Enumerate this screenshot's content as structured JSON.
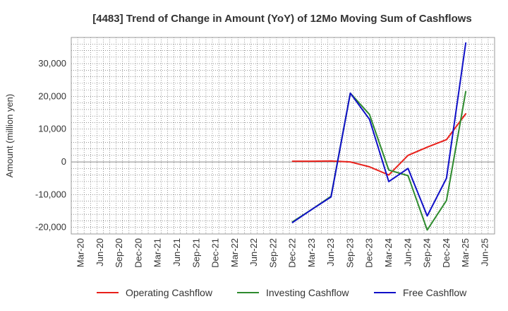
{
  "chart_data": {
    "type": "line",
    "title": "[4483]  Trend of Change in Amount (YoY) of 12Mo Moving Sum of Cashflows",
    "xlabel": "",
    "ylabel": "Amount (million yen)",
    "ylim": [
      -22000,
      38000
    ],
    "y_ticks": [
      -20000,
      -10000,
      0,
      10000,
      20000,
      30000
    ],
    "y_tick_labels": [
      "-20,000",
      "-10,000",
      "0",
      "10,000",
      "20,000",
      "30,000"
    ],
    "x_ticks": [
      "Mar-20",
      "Jun-20",
      "Sep-20",
      "Dec-20",
      "Mar-21",
      "Jun-21",
      "Sep-21",
      "Dec-21",
      "Mar-22",
      "Jun-22",
      "Sep-22",
      "Dec-22",
      "Mar-23",
      "Jun-23",
      "Sep-23",
      "Dec-23",
      "Mar-24",
      "Jun-24",
      "Sep-24",
      "Dec-24",
      "Mar-25",
      "Jun-25"
    ],
    "grid": true,
    "legend_position": "bottom",
    "series": [
      {
        "name": "Operating Cashflow",
        "color": "#e8201a",
        "points": [
          [
            "Dec-22",
            200
          ],
          [
            "Mar-23",
            200
          ],
          [
            "Jun-23",
            300
          ],
          [
            "Sep-23",
            0
          ],
          [
            "Dec-23",
            -1500
          ],
          [
            "Mar-24",
            -4000
          ],
          [
            "Jun-24",
            2000
          ],
          [
            "Sep-24",
            4500
          ],
          [
            "Dec-24",
            6800
          ],
          [
            "Mar-25",
            14700
          ]
        ]
      },
      {
        "name": "Investing Cashflow",
        "color": "#2e8b2e",
        "points": [
          [
            "Dec-22",
            -18300
          ],
          [
            "Mar-23",
            -14500
          ],
          [
            "Jun-23",
            -10500
          ],
          [
            "Sep-23",
            21000
          ],
          [
            "Dec-23",
            14500
          ],
          [
            "Mar-24",
            -2500
          ],
          [
            "Jun-24",
            -4200
          ],
          [
            "Sep-24",
            -20800
          ],
          [
            "Dec-24",
            -11800
          ],
          [
            "Mar-25",
            21500
          ]
        ]
      },
      {
        "name": "Free Cashflow",
        "color": "#1010c8",
        "points": [
          [
            "Dec-22",
            -18500
          ],
          [
            "Mar-23",
            -14500
          ],
          [
            "Jun-23",
            -10700
          ],
          [
            "Sep-23",
            21000
          ],
          [
            "Dec-23",
            13000
          ],
          [
            "Mar-24",
            -6000
          ],
          [
            "Jun-24",
            -2000
          ],
          [
            "Sep-24",
            -16500
          ],
          [
            "Dec-24",
            -5000
          ],
          [
            "Mar-25",
            36300
          ]
        ]
      }
    ]
  }
}
